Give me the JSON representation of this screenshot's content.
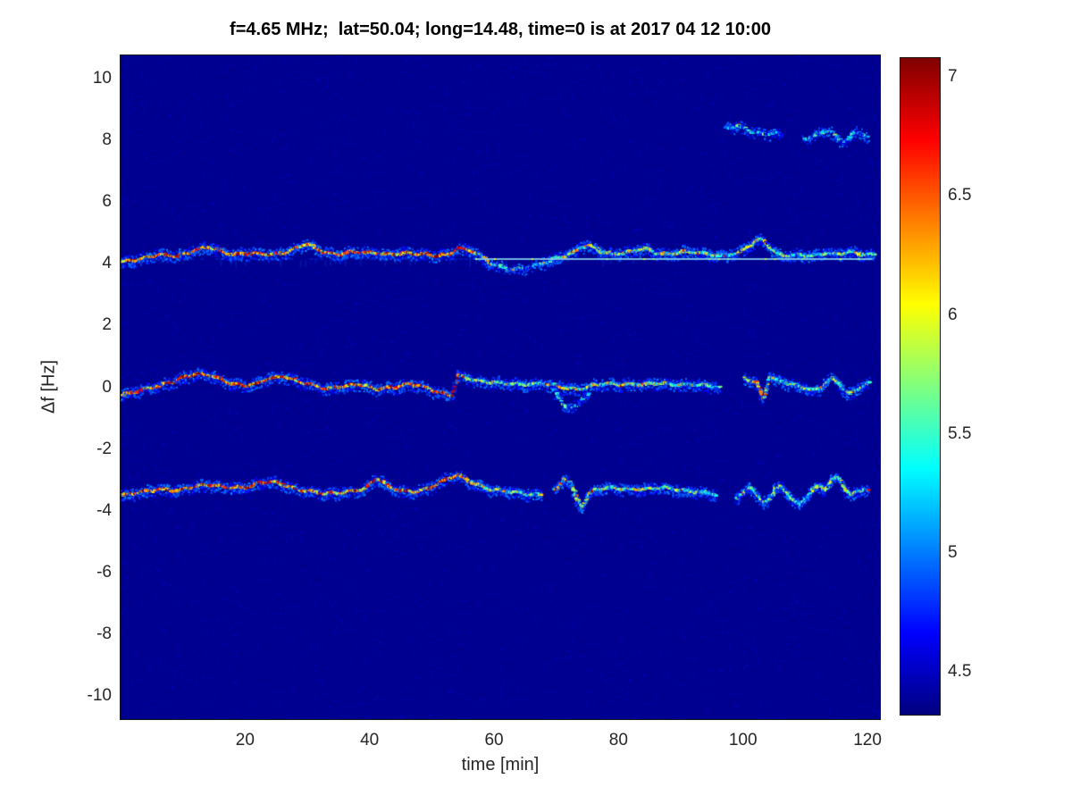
{
  "figure": {
    "title": "f=4.65 MHz;  lat=50.04; long=14.48, time=0 is at 2017 04 12 10:00",
    "xlabel": "time [min]",
    "ylabel": "Δf [Hz]"
  },
  "chart_data": {
    "type": "heatmap",
    "title": "f=4.65 MHz;  lat=50.04; long=14.48, time=0 is at 2017 04 12 10:00",
    "xlabel": "time [min]",
    "ylabel": "Δf [Hz]",
    "xlim": [
      0,
      122
    ],
    "ylim": [
      -10.75,
      10.75
    ],
    "xticks": [
      20,
      40,
      60,
      80,
      100,
      120
    ],
    "yticks": [
      10,
      8,
      6,
      4,
      2,
      0,
      -2,
      -4,
      -6,
      -8,
      -10
    ],
    "grid": false,
    "background_color": "#000090",
    "colorbar": {
      "min": 4.32,
      "max": 7.08,
      "ticks": [
        4.5,
        5,
        5.5,
        6,
        6.5,
        7
      ],
      "colormap": "jet",
      "stops": [
        {
          "pos": 0,
          "color": "#000080"
        },
        {
          "pos": 0.125,
          "color": "#0000ff"
        },
        {
          "pos": 0.375,
          "color": "#00ffff"
        },
        {
          "pos": 0.625,
          "color": "#ffff00"
        },
        {
          "pos": 0.875,
          "color": "#ff0000"
        },
        {
          "pos": 1,
          "color": "#800000"
        }
      ]
    },
    "hline": {
      "df": 4.18,
      "bright_color": "#7fc8e8",
      "dash_color": "#0018b8",
      "segments": [
        {
          "t": [
            0,
            57
          ],
          "style": "dashed"
        },
        {
          "t": [
            57,
            120.8
          ],
          "style": "bright"
        }
      ]
    },
    "traces": [
      {
        "name": "upper-doppler-trace",
        "points": [
          [
            0,
            4.05
          ],
          [
            3,
            4.15
          ],
          [
            6,
            4.3
          ],
          [
            9,
            4.25
          ],
          [
            12,
            4.45
          ],
          [
            14,
            4.55
          ],
          [
            16,
            4.4
          ],
          [
            18,
            4.3
          ],
          [
            21,
            4.35
          ],
          [
            24,
            4.3
          ],
          [
            27,
            4.4
          ],
          [
            29,
            4.6
          ],
          [
            30,
            4.65
          ],
          [
            31,
            4.5
          ],
          [
            33,
            4.35
          ],
          [
            35,
            4.3
          ],
          [
            37,
            4.4
          ],
          [
            40,
            4.35
          ],
          [
            43,
            4.3
          ],
          [
            46,
            4.35
          ],
          [
            49,
            4.3
          ],
          [
            51,
            4.25
          ],
          [
            53,
            4.35
          ],
          [
            54,
            4.5
          ],
          [
            56,
            4.45
          ],
          [
            58,
            4.2
          ],
          [
            60,
            3.95
          ],
          [
            63,
            3.8
          ],
          [
            66,
            3.9
          ],
          [
            68,
            4.05
          ],
          [
            70,
            4.2
          ],
          [
            72,
            4.3
          ],
          [
            74,
            4.55
          ],
          [
            75,
            4.6
          ],
          [
            77,
            4.4
          ],
          [
            79,
            4.3
          ],
          [
            82,
            4.4
          ],
          [
            84,
            4.5
          ],
          [
            86,
            4.35
          ],
          [
            88,
            4.3
          ],
          [
            90,
            4.4
          ],
          [
            93,
            4.35
          ],
          [
            96,
            4.25
          ],
          [
            99,
            4.35
          ],
          [
            101,
            4.6
          ],
          [
            102,
            4.75
          ],
          [
            103,
            4.8
          ],
          [
            104,
            4.55
          ],
          [
            105,
            4.35
          ],
          [
            107,
            4.25
          ],
          [
            109,
            4.3
          ],
          [
            111,
            4.25
          ],
          [
            113,
            4.35
          ],
          [
            115,
            4.3
          ],
          [
            117,
            4.4
          ],
          [
            119,
            4.3
          ],
          [
            121,
            4.3
          ]
        ],
        "intensity": [
          [
            0,
            0.72
          ],
          [
            8,
            0.8
          ],
          [
            15,
            0.78
          ],
          [
            22,
            0.75
          ],
          [
            30,
            0.68
          ],
          [
            38,
            0.72
          ],
          [
            46,
            0.75
          ],
          [
            52,
            0.8
          ],
          [
            56,
            0.75
          ],
          [
            58,
            0.4
          ],
          [
            62,
            0.28
          ],
          [
            66,
            0.3
          ],
          [
            70,
            0.45
          ],
          [
            74,
            0.55
          ],
          [
            78,
            0.5
          ],
          [
            83,
            0.55
          ],
          [
            88,
            0.48
          ],
          [
            93,
            0.42
          ],
          [
            98,
            0.45
          ],
          [
            102,
            0.6
          ],
          [
            104,
            0.5
          ],
          [
            108,
            0.4
          ],
          [
            113,
            0.45
          ],
          [
            117,
            0.42
          ],
          [
            121,
            0.4
          ]
        ],
        "gaps": []
      },
      {
        "name": "center-doppler-trace",
        "points": [
          [
            0,
            -0.25
          ],
          [
            3,
            -0.1
          ],
          [
            6,
            0.05
          ],
          [
            9,
            0.25
          ],
          [
            12,
            0.45
          ],
          [
            14,
            0.4
          ],
          [
            16,
            0.25
          ],
          [
            18,
            0.1
          ],
          [
            20,
            0.05
          ],
          [
            22,
            0.15
          ],
          [
            24,
            0.3
          ],
          [
            26,
            0.35
          ],
          [
            28,
            0.22
          ],
          [
            30,
            0.1
          ],
          [
            33,
            -0.05
          ],
          [
            36,
            0.05
          ],
          [
            38,
            0.1
          ],
          [
            41,
            -0.05
          ],
          [
            44,
            0.0
          ],
          [
            46,
            0.1
          ],
          [
            48,
            0.05
          ],
          [
            50,
            -0.1
          ],
          [
            52,
            -0.22
          ],
          [
            53,
            -0.28
          ],
          [
            54,
            0.4
          ],
          [
            55,
            0.32
          ],
          [
            57,
            0.22
          ],
          [
            60,
            0.15
          ],
          [
            64,
            0.08
          ],
          [
            68,
            0.12
          ],
          [
            71,
            0.0
          ],
          [
            73,
            -0.08
          ],
          [
            75,
            0.02
          ],
          [
            77,
            0.12
          ],
          [
            80,
            0.1
          ],
          [
            83,
            0.08
          ],
          [
            86,
            0.14
          ],
          [
            89,
            0.08
          ],
          [
            92,
            0.1
          ],
          [
            95,
            0.02
          ],
          [
            96,
            0.0
          ],
          [
            100,
            0.3
          ],
          [
            102,
            0.15
          ],
          [
            103,
            -0.4
          ],
          [
            104,
            0.35
          ],
          [
            106,
            0.18
          ],
          [
            108,
            0.08
          ],
          [
            110,
            -0.02
          ],
          [
            112,
            -0.1
          ],
          [
            113,
            0.15
          ],
          [
            114,
            0.3
          ],
          [
            115,
            0.15
          ],
          [
            116,
            -0.05
          ],
          [
            117,
            -0.2
          ],
          [
            118,
            -0.1
          ],
          [
            119,
            0.05
          ],
          [
            120,
            0.15
          ]
        ],
        "intensity": [
          [
            0,
            0.75
          ],
          [
            6,
            0.8
          ],
          [
            12,
            0.82
          ],
          [
            18,
            0.75
          ],
          [
            24,
            0.8
          ],
          [
            30,
            0.72
          ],
          [
            36,
            0.75
          ],
          [
            42,
            0.7
          ],
          [
            48,
            0.72
          ],
          [
            53,
            0.8
          ],
          [
            54,
            0.85
          ],
          [
            56,
            0.5
          ],
          [
            60,
            0.4
          ],
          [
            65,
            0.38
          ],
          [
            70,
            0.55
          ],
          [
            75,
            0.5
          ],
          [
            80,
            0.55
          ],
          [
            85,
            0.5
          ],
          [
            90,
            0.45
          ],
          [
            96,
            0.35
          ],
          [
            100,
            0.4
          ],
          [
            103,
            0.8
          ],
          [
            104,
            0.5
          ],
          [
            108,
            0.4
          ],
          [
            112,
            0.38
          ],
          [
            115,
            0.45
          ],
          [
            120,
            0.4
          ]
        ],
        "gaps": [
          [
            96,
            100
          ]
        ]
      },
      {
        "name": "center-trace-lower-curl",
        "points": [
          [
            69,
            0.0
          ],
          [
            70,
            -0.3
          ],
          [
            71,
            -0.55
          ],
          [
            72,
            -0.7
          ],
          [
            73,
            -0.6
          ],
          [
            74,
            -0.35
          ],
          [
            75,
            -0.2
          ]
        ],
        "intensity": [
          [
            69,
            0.25
          ],
          [
            75,
            0.25
          ]
        ],
        "gaps": []
      },
      {
        "name": "lower-doppler-trace",
        "points": [
          [
            0,
            -3.5
          ],
          [
            3,
            -3.4
          ],
          [
            6,
            -3.3
          ],
          [
            9,
            -3.35
          ],
          [
            12,
            -3.2
          ],
          [
            14,
            -3.15
          ],
          [
            17,
            -3.25
          ],
          [
            20,
            -3.25
          ],
          [
            22,
            -3.1
          ],
          [
            24,
            -3.05
          ],
          [
            26,
            -3.15
          ],
          [
            28,
            -3.3
          ],
          [
            31,
            -3.4
          ],
          [
            34,
            -3.45
          ],
          [
            37,
            -3.35
          ],
          [
            39,
            -3.3
          ],
          [
            41,
            -2.95
          ],
          [
            42,
            -3.05
          ],
          [
            43,
            -3.25
          ],
          [
            45,
            -3.35
          ],
          [
            47,
            -3.4
          ],
          [
            49,
            -3.3
          ],
          [
            51,
            -3.1
          ],
          [
            53,
            -2.9
          ],
          [
            54,
            -2.85
          ],
          [
            55,
            -2.95
          ],
          [
            57,
            -3.15
          ],
          [
            59,
            -3.3
          ],
          [
            61,
            -3.35
          ],
          [
            63,
            -3.4
          ],
          [
            65,
            -3.45
          ],
          [
            67,
            -3.5
          ],
          [
            70,
            -3.3
          ],
          [
            71,
            -2.95
          ],
          [
            72,
            -3.1
          ],
          [
            73,
            -3.6
          ],
          [
            74,
            -3.85
          ],
          [
            75,
            -3.5
          ],
          [
            76,
            -3.3
          ],
          [
            78,
            -3.25
          ],
          [
            81,
            -3.3
          ],
          [
            84,
            -3.3
          ],
          [
            87,
            -3.25
          ],
          [
            90,
            -3.35
          ],
          [
            93,
            -3.4
          ],
          [
            95,
            -3.45
          ],
          [
            99,
            -3.6
          ],
          [
            100,
            -3.4
          ],
          [
            101,
            -3.2
          ],
          [
            102,
            -3.5
          ],
          [
            103,
            -3.75
          ],
          [
            104,
            -3.6
          ],
          [
            105,
            -3.3
          ],
          [
            106,
            -3.2
          ],
          [
            107,
            -3.45
          ],
          [
            108,
            -3.7
          ],
          [
            109,
            -3.8
          ],
          [
            110,
            -3.55
          ],
          [
            111,
            -3.3
          ],
          [
            112,
            -3.2
          ],
          [
            113,
            -3.3
          ],
          [
            114,
            -3.0
          ],
          [
            115,
            -2.9
          ],
          [
            116,
            -3.2
          ],
          [
            117,
            -3.5
          ],
          [
            118,
            -3.4
          ],
          [
            119,
            -3.3
          ],
          [
            120,
            -3.35
          ]
        ],
        "intensity": [
          [
            0,
            0.75
          ],
          [
            6,
            0.8
          ],
          [
            12,
            0.78
          ],
          [
            18,
            0.75
          ],
          [
            24,
            0.8
          ],
          [
            30,
            0.72
          ],
          [
            36,
            0.7
          ],
          [
            41,
            0.75
          ],
          [
            46,
            0.72
          ],
          [
            52,
            0.8
          ],
          [
            55,
            0.7
          ],
          [
            58,
            0.5
          ],
          [
            62,
            0.45
          ],
          [
            66,
            0.4
          ],
          [
            70,
            0.5
          ],
          [
            73,
            0.55
          ],
          [
            76,
            0.5
          ],
          [
            80,
            0.55
          ],
          [
            85,
            0.5
          ],
          [
            90,
            0.45
          ],
          [
            95,
            0.4
          ],
          [
            99,
            0.35
          ],
          [
            103,
            0.45
          ],
          [
            107,
            0.4
          ],
          [
            111,
            0.42
          ],
          [
            114,
            0.5
          ],
          [
            116,
            0.45
          ],
          [
            120,
            0.4
          ]
        ],
        "gaps": [
          [
            67.5,
            69.5
          ],
          [
            95.5,
            98.5
          ]
        ]
      },
      {
        "name": "faint-8hz-trace",
        "points": [
          [
            97,
            8.4
          ],
          [
            99,
            8.45
          ],
          [
            101,
            8.3
          ],
          [
            103,
            8.2
          ],
          [
            105,
            8.25
          ],
          [
            107,
            8.1
          ],
          [
            110,
            8.05
          ],
          [
            112,
            8.2
          ],
          [
            113,
            8.35
          ],
          [
            114,
            8.25
          ],
          [
            115,
            8.05
          ],
          [
            116,
            7.95
          ],
          [
            117,
            8.1
          ],
          [
            118,
            8.3
          ],
          [
            119,
            8.2
          ],
          [
            120,
            8.1
          ]
        ],
        "intensity": [
          [
            97,
            0.22
          ],
          [
            100,
            0.25
          ],
          [
            105,
            0.2
          ],
          [
            110,
            0.22
          ],
          [
            113,
            0.35
          ],
          [
            115,
            0.25
          ],
          [
            120,
            0.22
          ]
        ],
        "gaps": [
          [
            106,
            109.5
          ]
        ]
      }
    ]
  }
}
